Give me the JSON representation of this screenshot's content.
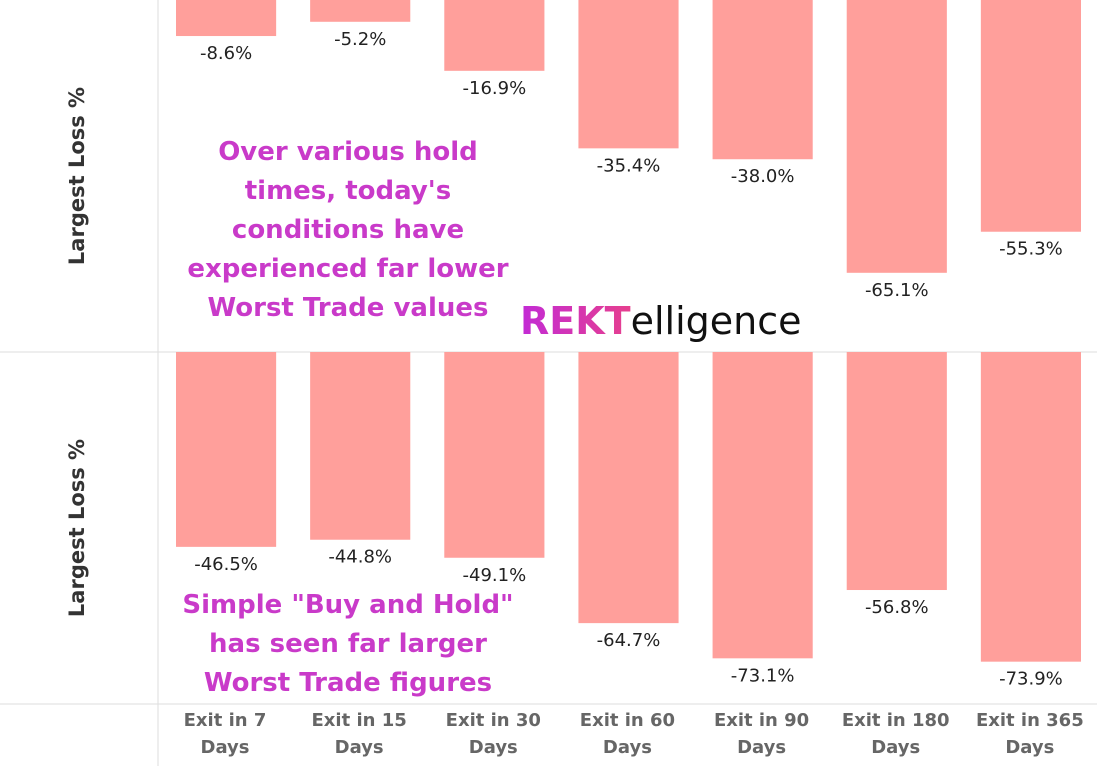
{
  "chart_data": [
    {
      "type": "bar",
      "y_label": "Largest Loss %",
      "color": "#ff9f9b",
      "ylim": [
        0,
        -84
      ],
      "values": [
        -8.6,
        -5.2,
        -16.9,
        -35.4,
        -38.0,
        -65.1,
        -55.3
      ],
      "value_labels": [
        "-8.6%",
        "-5.2%",
        "-16.9%",
        "-35.4%",
        "-38.0%",
        "-65.1%",
        "-55.3%"
      ],
      "annotation": "Over various hold times, today's conditions have experienced far lower Worst Trade values"
    },
    {
      "type": "bar",
      "y_label": "Largest Loss %",
      "color": "#ff9f9b",
      "ylim": [
        0,
        -84
      ],
      "categories": [
        "Exit in 7 Days",
        "Exit in 15 Days",
        "Exit in 30 Days",
        "Exit in 60 Days",
        "Exit in 90 Days",
        "Exit in 180 Days",
        "Exit in 365 Days"
      ],
      "values": [
        -46.5,
        -44.8,
        -49.1,
        -64.7,
        -73.1,
        -56.8,
        -73.9
      ],
      "value_labels": [
        "-46.5%",
        "-44.8%",
        "-49.1%",
        "-64.7%",
        "-73.1%",
        "-56.8%",
        "-73.9%"
      ],
      "annotation": "Simple \"Buy and Hold\" has seen far larger Worst Trade figures"
    }
  ],
  "logo": {
    "highlight": "REKT",
    "rest": "elligence"
  }
}
